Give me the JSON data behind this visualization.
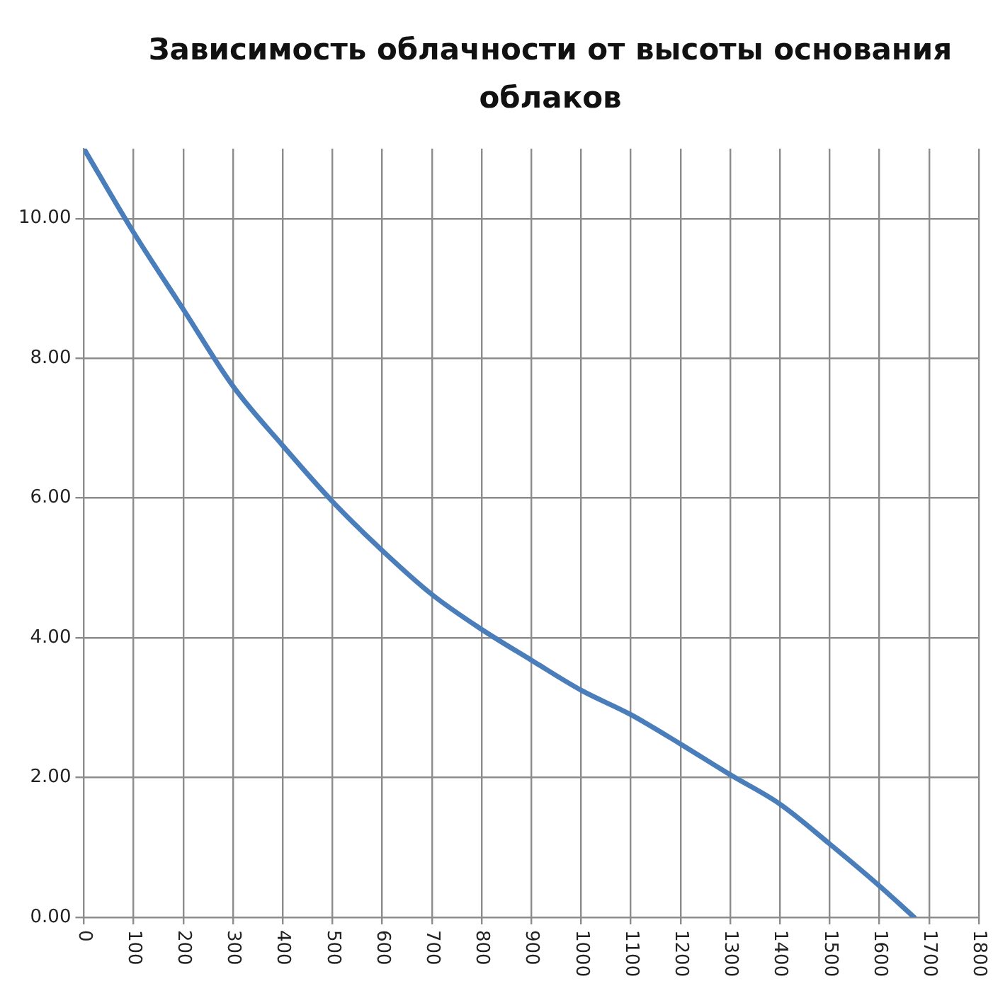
{
  "chart_data": {
    "type": "line",
    "title": "Зависимость облачности от высоты основания облаков",
    "x": [
      0,
      100,
      200,
      300,
      400,
      500,
      600,
      700,
      800,
      900,
      1000,
      1100,
      1200,
      1300,
      1400,
      1500,
      1600,
      1670
    ],
    "series": [
      {
        "color": "#4a7ebb",
        "values": [
          11,
          9.8,
          8.7,
          7.6,
          6.75,
          5.95,
          5.25,
          4.62,
          4.12,
          3.68,
          3.25,
          2.9,
          2.48,
          2.04,
          1.62,
          1.05,
          0.45,
          0
        ]
      }
    ],
    "xlim": [
      0,
      1800
    ],
    "xticks": [
      0,
      100,
      200,
      300,
      400,
      500,
      600,
      700,
      800,
      900,
      1000,
      1100,
      1200,
      1300,
      1400,
      1500,
      1600,
      1700,
      1800
    ],
    "ylim": [
      0,
      11
    ],
    "yticks": [
      {
        "value": 0,
        "label": "0.00"
      },
      {
        "value": 2,
        "label": "2.00"
      },
      {
        "value": 4,
        "label": "4.00"
      },
      {
        "value": 6,
        "label": "6.00"
      },
      {
        "value": 8,
        "label": "8.00"
      },
      {
        "value": 10,
        "label": "10.00"
      }
    ],
    "grid": true,
    "legend": false,
    "marker": "none",
    "line_style": "solid"
  }
}
